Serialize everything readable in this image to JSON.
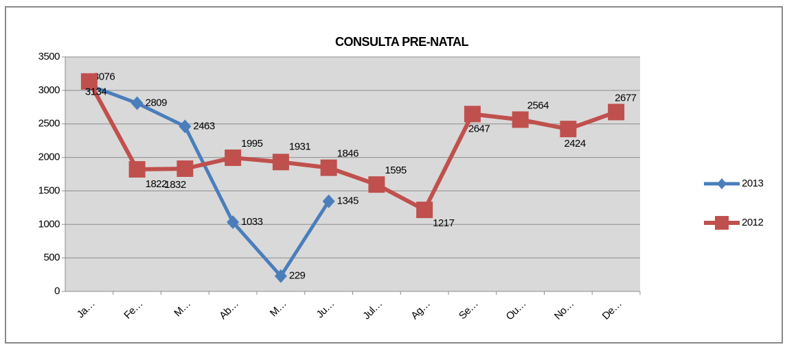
{
  "chart_data": {
    "type": "line",
    "title": "CONSULTA PRE-NATAL",
    "categories": [
      "Ja…",
      "Fe…",
      "M…",
      "Ab…",
      "M…",
      "Ju…",
      "Jul…",
      "Ag…",
      "Se…",
      "Ou…",
      "No…",
      "De…"
    ],
    "series": [
      {
        "name": "2013",
        "color": "#4a7ebb",
        "marker": "diamond",
        "values": [
          3076,
          2809,
          2463,
          1033,
          229,
          1345,
          null,
          null,
          null,
          null,
          null,
          null
        ]
      },
      {
        "name": "2012",
        "color": "#c0504d",
        "marker": "square",
        "values": [
          3134,
          1822,
          1832,
          1995,
          1931,
          1846,
          1595,
          1217,
          2647,
          2564,
          2424,
          2677
        ]
      }
    ],
    "ylim": [
      0,
      3500
    ],
    "yticks": [
      0,
      500,
      1000,
      1500,
      2000,
      2500,
      3000,
      3500
    ],
    "grid": true,
    "legend": "right"
  }
}
